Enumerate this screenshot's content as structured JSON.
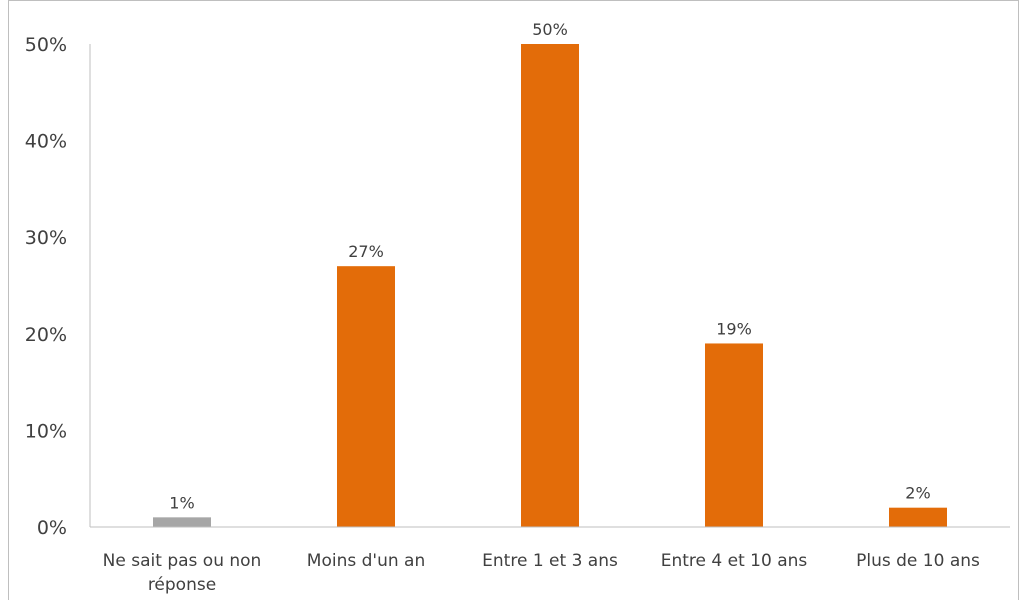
{
  "chart_data": {
    "type": "bar",
    "title": "",
    "xlabel": "",
    "ylabel": "",
    "categories": [
      [
        "Ne sait pas ou non",
        "réponse"
      ],
      [
        "Moins d'un an"
      ],
      [
        "Entre 1 et 3 ans"
      ],
      [
        "Entre 4 et 10 ans"
      ],
      [
        "Plus de 10 ans"
      ]
    ],
    "values": [
      1,
      27,
      50,
      19,
      2
    ],
    "value_labels": [
      "1%",
      "27%",
      "50%",
      "19%",
      "2%"
    ],
    "bar_colors": [
      "#a6a6a6",
      "#e36c09",
      "#e36c09",
      "#e36c09",
      "#e36c09"
    ],
    "ylim": [
      0,
      50
    ],
    "yticks": [
      0,
      10,
      20,
      30,
      40,
      50
    ],
    "ytick_labels": [
      "0%",
      "10%",
      "20%",
      "30%",
      "40%",
      "50%"
    ],
    "grid": false,
    "legend": "none"
  }
}
